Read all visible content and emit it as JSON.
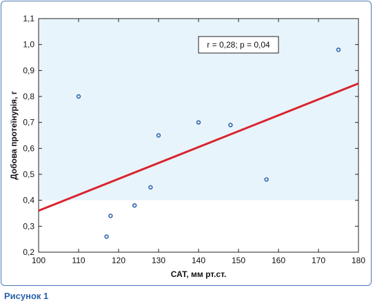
{
  "caption": "Рисунок 1",
  "annotation": "r = 0,28; p = 0,04",
  "colors": {
    "plot_band": "#e8f4fb",
    "trend_line": "#d9232d",
    "points": "#2b62b0",
    "frame": "#4a79b8",
    "caption": "#2b62b0"
  },
  "chart_data": {
    "type": "scatter",
    "title": "",
    "xlabel": "САТ, мм рт.ст.",
    "ylabel": "Добова протеїнурія, г",
    "xlim": [
      100,
      180
    ],
    "ylim": [
      0.2,
      1.1
    ],
    "x_ticks": [
      100,
      110,
      120,
      130,
      140,
      150,
      160,
      170,
      180
    ],
    "x_tick_labels": [
      "100",
      "110",
      "120",
      "130",
      "140",
      "150",
      "160",
      "170",
      "180"
    ],
    "y_ticks": [
      0.2,
      0.3,
      0.4,
      0.5,
      0.6,
      0.7,
      0.8,
      0.9,
      1.0,
      1.1
    ],
    "y_tick_labels": [
      "0,2",
      "0,3",
      "0,4",
      "0,5",
      "0,6",
      "0,7",
      "0,8",
      "0,9",
      "1,0",
      "1,1"
    ],
    "shaded_band_y": [
      0.4,
      1.1
    ],
    "points": [
      {
        "x": 110,
        "y": 0.8
      },
      {
        "x": 117,
        "y": 0.26
      },
      {
        "x": 118,
        "y": 0.34
      },
      {
        "x": 124,
        "y": 0.38
      },
      {
        "x": 128,
        "y": 0.45
      },
      {
        "x": 130,
        "y": 0.65
      },
      {
        "x": 140,
        "y": 0.7
      },
      {
        "x": 148,
        "y": 0.69
      },
      {
        "x": 157,
        "y": 0.48
      },
      {
        "x": 175,
        "y": 0.98
      }
    ],
    "trend_line": {
      "x": [
        100,
        180
      ],
      "y": [
        0.36,
        0.85
      ]
    },
    "grid": false,
    "legend": "none"
  }
}
